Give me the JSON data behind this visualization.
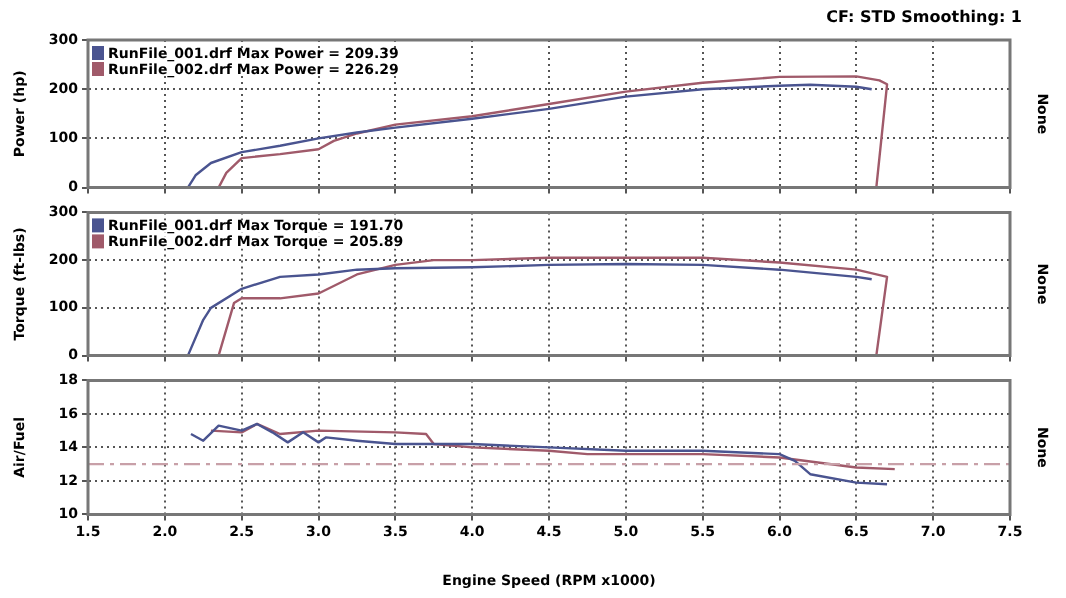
{
  "chart_data": [
    {
      "type": "line",
      "annotations": [
        "CF: STD  Smoothing: 1"
      ],
      "ylabel": "Power (hp)",
      "y2label": "None",
      "legend": "top left",
      "grid": true,
      "marker": "none",
      "tick_labels": "y",
      "xlim": [
        1.5,
        7.5
      ],
      "xticks": [
        1.5,
        2,
        2.5,
        3,
        3.5,
        4,
        4.5,
        5,
        5.5,
        6,
        6.5,
        7,
        7.5
      ],
      "ylim": [
        0,
        300
      ],
      "yticks": [
        0,
        100,
        200,
        300
      ],
      "series": [
        {
          "name": "RunFile_001.drf Max Power = 209.39",
          "color": "#4a5490",
          "x": [
            2.15,
            2.2,
            2.3,
            2.5,
            2.75,
            3.0,
            3.25,
            3.5,
            4.0,
            4.5,
            5.0,
            5.5,
            6.0,
            6.2,
            6.5,
            6.6
          ],
          "values": [
            0,
            25,
            50,
            72,
            85,
            100,
            112,
            122,
            140,
            160,
            185,
            200,
            207,
            209,
            205,
            200
          ]
        },
        {
          "name": "RunFile_002.drf Max Power = 226.29",
          "color": "#a05a6a",
          "x": [
            2.35,
            2.4,
            2.5,
            2.75,
            3.0,
            3.1,
            3.25,
            3.5,
            4.0,
            4.5,
            5.0,
            5.5,
            6.0,
            6.5,
            6.65,
            6.7,
            6.63
          ],
          "values": [
            0,
            30,
            60,
            68,
            78,
            95,
            110,
            128,
            145,
            170,
            195,
            213,
            225,
            226,
            218,
            210,
            0
          ]
        }
      ]
    },
    {
      "type": "line",
      "ylabel": "Torque (ft-lbs)",
      "y2label": "None",
      "legend": "top left",
      "grid": true,
      "marker": "none",
      "tick_labels": "y",
      "xlim": [
        1.5,
        7.5
      ],
      "xticks": [
        1.5,
        2,
        2.5,
        3,
        3.5,
        4,
        4.5,
        5,
        5.5,
        6,
        6.5,
        7,
        7.5
      ],
      "ylim": [
        0,
        300
      ],
      "yticks": [
        0,
        100,
        200,
        300
      ],
      "series": [
        {
          "name": "RunFile_001.drf Max Torque = 191.70",
          "color": "#4a5490",
          "x": [
            2.15,
            2.25,
            2.3,
            2.5,
            2.75,
            3.0,
            3.25,
            3.5,
            4.0,
            4.5,
            5.0,
            5.5,
            6.0,
            6.5,
            6.6
          ],
          "values": [
            0,
            75,
            100,
            140,
            165,
            170,
            180,
            183,
            185,
            190,
            192,
            190,
            180,
            165,
            160
          ]
        },
        {
          "name": "RunFile_002.drf Max Torque = 205.89",
          "color": "#a05a6a",
          "x": [
            2.35,
            2.45,
            2.5,
            2.75,
            3.0,
            3.25,
            3.5,
            3.75,
            4.0,
            4.5,
            5.0,
            5.5,
            6.0,
            6.5,
            6.7,
            6.63
          ],
          "values": [
            0,
            110,
            120,
            120,
            130,
            170,
            190,
            200,
            200,
            205,
            205,
            205,
            195,
            180,
            165,
            0
          ]
        }
      ]
    },
    {
      "type": "line",
      "ylabel": "Air/Fuel",
      "y2label": "None",
      "xlabel": "Engine Speed (RPM x1000)",
      "grid": true,
      "marker": "none",
      "xlim": [
        1.5,
        7.5
      ],
      "xticks": [
        1.5,
        {
          "value": 2,
          "label": "2.0"
        },
        2.5,
        {
          "value": 3,
          "label": "3.0"
        },
        3.5,
        {
          "value": 4,
          "label": "4.0"
        },
        4.5,
        {
          "value": 5,
          "label": "5.0"
        },
        5.5,
        {
          "value": 6,
          "label": "6.0"
        },
        6.5,
        {
          "value": 7,
          "label": "7.0"
        },
        7.5
      ],
      "ylim": [
        10,
        18
      ],
      "yticks": [
        10,
        12,
        14,
        16,
        18
      ],
      "ref_lines": [
        {
          "axis": "y",
          "value": 13,
          "color": "#c8a0a8",
          "line_style": "dashed"
        }
      ],
      "series": [
        {
          "color": "#4a5490",
          "x": [
            2.17,
            2.25,
            2.35,
            2.5,
            2.6,
            2.7,
            2.8,
            2.9,
            3.0,
            3.05,
            3.25,
            3.5,
            4.0,
            4.5,
            5.0,
            5.5,
            6.0,
            6.1,
            6.2,
            6.5,
            6.7
          ],
          "values": [
            14.8,
            14.4,
            15.3,
            15.0,
            15.4,
            14.9,
            14.3,
            14.9,
            14.3,
            14.6,
            14.4,
            14.2,
            14.2,
            14.0,
            13.8,
            13.8,
            13.6,
            13.2,
            12.4,
            11.9,
            11.8
          ]
        },
        {
          "color": "#a05a6a",
          "x": [
            2.3,
            2.5,
            2.6,
            2.75,
            3.0,
            3.5,
            3.7,
            3.75,
            4.0,
            4.5,
            4.75,
            5.0,
            5.5,
            6.0,
            6.5,
            6.75
          ],
          "values": [
            15.0,
            14.9,
            15.4,
            14.8,
            15.0,
            14.9,
            14.8,
            14.2,
            14.0,
            13.8,
            13.6,
            13.6,
            13.6,
            13.4,
            12.8,
            12.7
          ]
        }
      ]
    }
  ]
}
